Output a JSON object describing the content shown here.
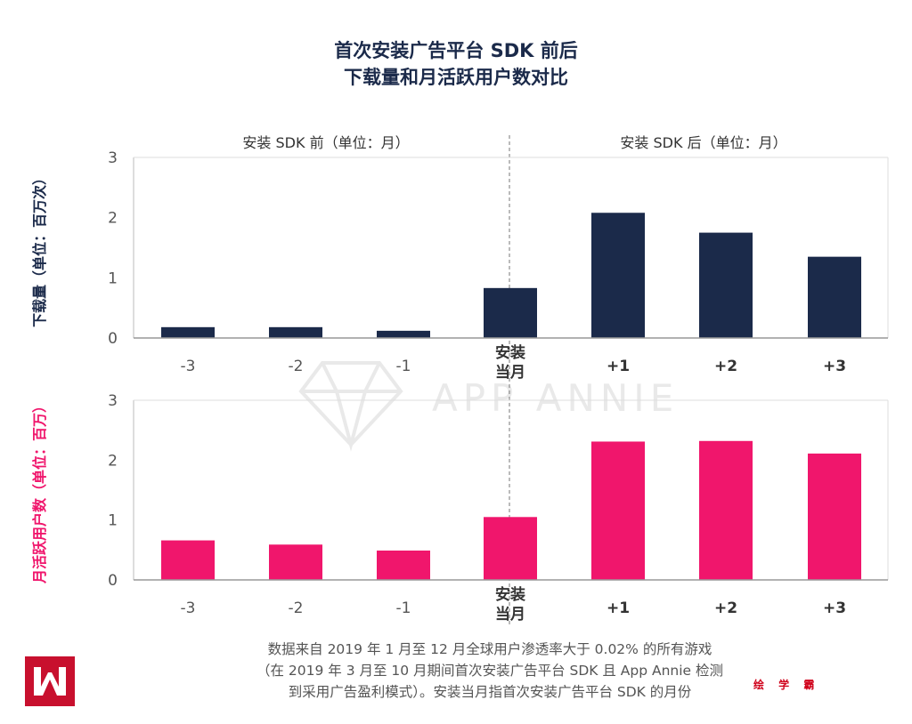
{
  "title": {
    "line1": "首次安装广告平台 SDK 前后",
    "line2": "下载量和月活跃用户数对比"
  },
  "section_labels": {
    "before": "安装 SDK 前（单位：月）",
    "after": "安装 SDK 后（单位：月）"
  },
  "watermark": "APP ANNIE",
  "footnote": {
    "line1": "数据来自 2019 年 1 月至 12 月全球用户渗透率大于 0.02% 的所有游戏",
    "line2": "（在 2019 年 3 月至 10 月期间首次安装广告平台 SDK 且 App Annie 检测",
    "line3": "到采用广告盈利模式）。安装当月指首次安装广告平台 SDK 的月份"
  },
  "brand_mark": "绘 学 霸",
  "colors": {
    "downloads": "#1b2a4a",
    "mau": "#f0166c",
    "axis": "#999999",
    "title": "#1b2a4a"
  },
  "chart_data": [
    {
      "type": "bar",
      "title": "下载量",
      "ylabel": "下载量（单位：百万次）",
      "xlabel": "",
      "categories": [
        "-3",
        "-2",
        "-1",
        "安装\n当月",
        "+1",
        "+2",
        "+3"
      ],
      "values": [
        0.18,
        0.18,
        0.12,
        0.83,
        2.08,
        1.75,
        1.35
      ],
      "ylim": [
        0,
        3
      ],
      "yticks": [
        "0",
        "1",
        "2",
        "3"
      ],
      "color": "#1b2a4a"
    },
    {
      "type": "bar",
      "title": "月活跃用户数",
      "ylabel": "月活跃用户数（单位：百万）",
      "xlabel": "",
      "categories": [
        "-3",
        "-2",
        "-1",
        "安装\n当月",
        "+1",
        "+2",
        "+3"
      ],
      "values": [
        0.66,
        0.59,
        0.49,
        1.05,
        2.31,
        2.32,
        2.11
      ],
      "ylim": [
        0,
        3
      ],
      "yticks": [
        "0",
        "1",
        "2",
        "3"
      ],
      "color": "#f0166c"
    }
  ]
}
